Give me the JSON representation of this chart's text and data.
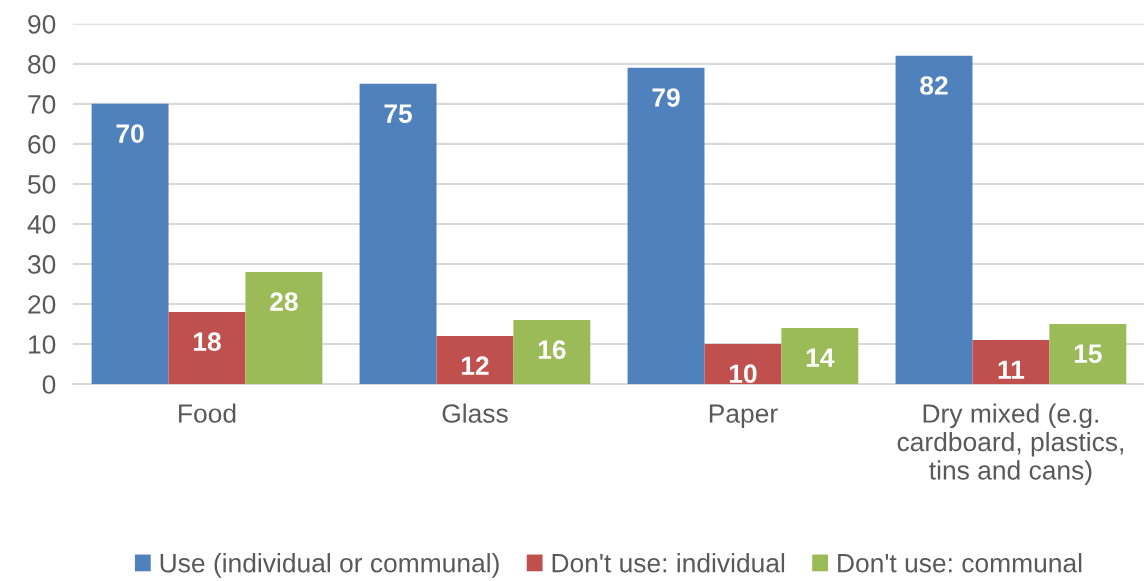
{
  "chart_data": {
    "type": "bar",
    "categories": [
      "Food",
      "Glass",
      "Paper",
      "Dry mixed (e.g.\ncardboard, plastics,\ntins and cans)"
    ],
    "series": [
      {
        "name": "Use (individual or communal)",
        "color": "#4f81bd",
        "values": [
          70,
          75,
          79,
          82
        ]
      },
      {
        "name": "Don't use: individual",
        "color": "#c0504d",
        "values": [
          18,
          12,
          10,
          11
        ]
      },
      {
        "name": "Don't use: communal",
        "color": "#9bbb59",
        "values": [
          28,
          16,
          14,
          15
        ]
      }
    ],
    "ylim": [
      0,
      90
    ],
    "yticks": [
      0,
      10,
      20,
      30,
      40,
      50,
      60,
      70,
      80,
      90
    ],
    "grid": "y",
    "legend": "bottom",
    "data_labels": true
  }
}
